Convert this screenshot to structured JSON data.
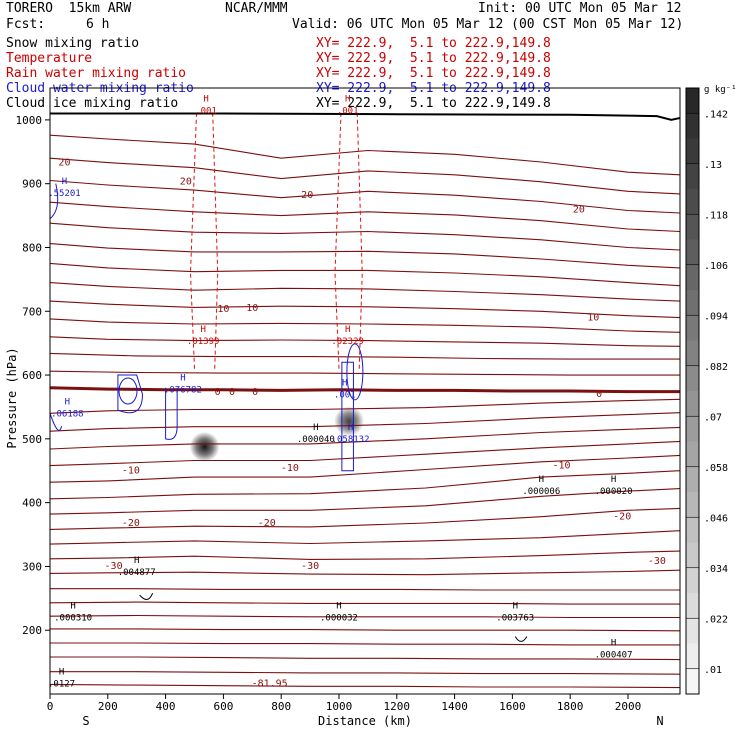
{
  "header": {
    "model": "TORERO  15km ARW",
    "center": "NCAR/MMM",
    "init": "Init: 00 UTC Mon 05 Mar 12",
    "fcst_label": "Fcst:",
    "fcst_value": "6 h",
    "valid": "Valid: 06 UTC Mon 05 Mar 12 (00 CST Mon 05 Mar 12)"
  },
  "legend": [
    {
      "label": "Snow mixing ratio",
      "xy": "XY= 222.9,  5.1 to 222.9,149.8",
      "color": "#000000"
    },
    {
      "label": "Temperature",
      "xy": "XY= 222.9,  5.1 to 222.9,149.8",
      "color": "#cc0000"
    },
    {
      "label": "Rain water mixing ratio",
      "xy": "XY= 222.9,  5.1 to 222.9,149.8",
      "color": "#cc0000"
    },
    {
      "label": "Cloud water mixing ratio",
      "xy": "XY= 222.9,  5.1 to 222.9,149.8",
      "color": "#1a1acc"
    },
    {
      "label": "Cloud ice mixing ratio",
      "xy": "XY= 222.9,  5.1 to 222.9,149.8",
      "color": "#000000"
    }
  ],
  "chart_data": {
    "type": "cross-section contour",
    "xlabel": "Distance (km)",
    "ylabel": "Pressure (hPa)",
    "xlim": [
      0,
      2180
    ],
    "ylim": [
      1050,
      100
    ],
    "x_ticks": [
      "0",
      "200",
      "400",
      "600",
      "800",
      "1000",
      "1200",
      "1400",
      "1600",
      "1800",
      "2000"
    ],
    "x_tick_values": [
      0,
      200,
      400,
      600,
      800,
      1000,
      1200,
      1400,
      1600,
      1800,
      2000
    ],
    "y_ticks": [
      "200",
      "300",
      "400",
      "500",
      "600",
      "700",
      "800",
      "900",
      "1000"
    ],
    "y_tick_values": [
      200,
      300,
      400,
      500,
      600,
      700,
      800,
      900,
      1000
    ],
    "left_end": "S",
    "right_end": "N",
    "colorbar": {
      "unit": "g kg⁻¹",
      "labels": [
        ".142",
        ".13",
        ".118",
        ".106",
        ".094",
        ".082",
        ".07",
        ".058",
        ".046",
        ".034",
        ".022",
        ".01"
      ],
      "values": [
        0.142,
        0.13,
        0.118,
        0.106,
        0.094,
        0.082,
        0.07,
        0.058,
        0.046,
        0.034,
        0.022,
        0.01
      ],
      "min": 0.004,
      "max": 0.148
    },
    "temperature_contours": [
      {
        "x": [
          0,
          300,
          600,
          900,
          1200,
          1500,
          1800,
          2180
        ],
        "p": [
          115,
          114,
          113,
          112,
          112,
          111,
          111,
          110
        ]
      },
      {
        "x": [
          0,
          300,
          600,
          900,
          1200,
          1500,
          1800,
          2180
        ],
        "p": [
          135,
          135,
          134,
          133,
          133,
          132,
          132,
          131
        ]
      },
      {
        "x": [
          0,
          300,
          600,
          900,
          1200,
          1500,
          1800,
          2180
        ],
        "p": [
          158,
          158,
          157,
          156,
          156,
          155,
          155,
          154
        ]
      },
      {
        "x": [
          0,
          300,
          600,
          900,
          1200,
          1500,
          1800,
          2180
        ],
        "p": [
          180,
          180,
          179,
          179,
          178,
          178,
          177,
          177
        ]
      },
      {
        "x": [
          0,
          300,
          600,
          900,
          1200,
          1500,
          1800,
          2180
        ],
        "p": [
          202,
          202,
          201,
          201,
          200,
          200,
          200,
          199
        ]
      },
      {
        "x": [
          0,
          300,
          600,
          900,
          1200,
          1500,
          1800,
          2180
        ],
        "p": [
          222,
          223,
          222,
          221,
          221,
          221,
          220,
          220
        ]
      },
      {
        "x": [
          0,
          300,
          600,
          900,
          1200,
          1500,
          1800,
          2180
        ],
        "p": [
          243,
          244,
          243,
          242,
          242,
          242,
          241,
          241
        ]
      },
      {
        "x": [
          0,
          300,
          600,
          900,
          1200,
          1500,
          1800,
          2180
        ],
        "p": [
          265,
          265,
          264,
          264,
          264,
          263,
          263,
          263
        ]
      },
      {
        "x": [
          0,
          200,
          500,
          900,
          1300,
          1700,
          2000,
          2180
        ],
        "p": [
          289,
          290,
          291,
          288,
          287,
          290,
          292,
          294
        ]
      },
      {
        "x": [
          0,
          200,
          500,
          900,
          1300,
          1700,
          2000,
          2180
        ],
        "p": [
          312,
          313,
          316,
          311,
          312,
          317,
          322,
          324
        ]
      },
      {
        "x": [
          0,
          200,
          500,
          900,
          1300,
          1700,
          2000,
          2180
        ],
        "p": [
          335,
          337,
          340,
          336,
          340,
          345,
          352,
          356
        ]
      },
      {
        "x": [
          0,
          200,
          500,
          900,
          1300,
          1700,
          2000,
          2180
        ],
        "p": [
          358,
          360,
          363,
          362,
          368,
          378,
          388,
          391
        ]
      },
      {
        "x": [
          0,
          200,
          500,
          900,
          1300,
          1700,
          2000,
          2180
        ],
        "p": [
          382,
          384,
          388,
          388,
          395,
          410,
          418,
          422
        ]
      },
      {
        "x": [
          0,
          200,
          500,
          900,
          1300,
          1700,
          2000,
          2180
        ],
        "p": [
          406,
          408,
          413,
          414,
          423,
          440,
          446,
          450
        ]
      },
      {
        "x": [
          0,
          200,
          500,
          900,
          1300,
          1700,
          2000,
          2180
        ],
        "p": [
          432,
          434,
          440,
          440,
          452,
          464,
          470,
          474
        ]
      },
      {
        "x": [
          0,
          200,
          500,
          900,
          1300,
          1700,
          2000,
          2180
        ],
        "p": [
          458,
          461,
          466,
          466,
          476,
          486,
          492,
          496
        ]
      },
      {
        "x": [
          0,
          200,
          500,
          900,
          1300,
          1700,
          2000,
          2180
        ],
        "p": [
          484,
          488,
          492,
          492,
          500,
          510,
          515,
          518
        ]
      },
      {
        "x": [
          0,
          200,
          500,
          900,
          1300,
          1700,
          2000,
          2180
        ],
        "p": [
          512,
          516,
          519,
          519,
          524,
          533,
          538,
          541
        ]
      },
      {
        "x": [
          0,
          200,
          500,
          900,
          1300,
          1700,
          2000,
          2180
        ],
        "p": [
          540,
          544,
          546,
          546,
          549,
          556,
          560,
          562
        ]
      },
      {
        "x": [
          0,
          300,
          600,
          900,
          1200,
          1500,
          1800,
          2180
        ],
        "p": [
          580,
          578,
          577,
          577,
          576,
          575,
          574,
          574
        ]
      },
      {
        "x": [
          0,
          300,
          600,
          900,
          1200,
          1500,
          1800,
          2180
        ],
        "p": [
          606,
          604,
          603,
          603,
          602,
          601,
          600,
          600
        ]
      },
      {
        "x": [
          0,
          300,
          600,
          900,
          1200,
          1500,
          1800,
          2180
        ],
        "p": [
          634,
          630,
          629,
          629,
          628,
          626,
          625,
          625
        ]
      },
      {
        "x": [
          0,
          200,
          500,
          800,
          1100,
          1400,
          1700,
          2000,
          2180
        ],
        "p": [
          660,
          656,
          654,
          655,
          654,
          652,
          650,
          646,
          645
        ]
      },
      {
        "x": [
          0,
          200,
          500,
          800,
          1100,
          1400,
          1700,
          2000,
          2180
        ],
        "p": [
          688,
          683,
          680,
          681,
          680,
          678,
          675,
          669,
          667
        ]
      },
      {
        "x": [
          0,
          200,
          500,
          800,
          1100,
          1400,
          1700,
          2000,
          2180
        ],
        "p": [
          716,
          711,
          706,
          708,
          707,
          704,
          700,
          693,
          690
        ]
      },
      {
        "x": [
          0,
          200,
          500,
          800,
          1100,
          1400,
          1700,
          2000,
          2180
        ],
        "p": [
          745,
          739,
          733,
          736,
          735,
          731,
          726,
          719,
          716
        ]
      },
      {
        "x": [
          0,
          200,
          500,
          800,
          1100,
          1400,
          1700,
          2000,
          2180
        ],
        "p": [
          775,
          768,
          762,
          764,
          764,
          760,
          754,
          745,
          740
        ]
      },
      {
        "x": [
          0,
          200,
          500,
          800,
          1100,
          1400,
          1700,
          2000,
          2180
        ],
        "p": [
          806,
          799,
          793,
          793,
          794,
          790,
          782,
          772,
          768
        ]
      },
      {
        "x": [
          0,
          200,
          500,
          800,
          1100,
          1400,
          1700,
          2000,
          2180
        ],
        "p": [
          838,
          831,
          824,
          822,
          825,
          820,
          812,
          800,
          796
        ]
      },
      {
        "x": [
          0,
          200,
          500,
          800,
          1100,
          1400,
          1700,
          2000,
          2180
        ],
        "p": [
          871,
          864,
          856,
          850,
          856,
          851,
          842,
          829,
          825
        ]
      },
      {
        "x": [
          0,
          200,
          500,
          800,
          1100,
          1400,
          1700,
          2000,
          2180
        ],
        "p": [
          905,
          898,
          890,
          878,
          888,
          882,
          872,
          858,
          854
        ]
      },
      {
        "x": [
          0,
          200,
          500,
          800,
          1100,
          1400,
          1700,
          2000,
          2180
        ],
        "p": [
          940,
          933,
          925,
          908,
          920,
          914,
          903,
          888,
          884
        ]
      },
      {
        "x": [
          0,
          200,
          500,
          800,
          1100,
          1400,
          1700,
          2000,
          2180
        ],
        "p": [
          976,
          970,
          962,
          940,
          952,
          946,
          934,
          918,
          914
        ]
      }
    ],
    "zero_isotherm": {
      "x": [
        0,
        200,
        400,
        600,
        800,
        1000,
        1200,
        1400,
        1600,
        1800,
        2000,
        2180
      ],
      "p": [
        580,
        578,
        577,
        577,
        576,
        577,
        576,
        576,
        575,
        575,
        574,
        574
      ],
      "label": "0"
    },
    "ground": {
      "x": [
        0,
        600,
        1200,
        1800,
        2100,
        2150,
        2180
      ],
      "p": [
        1010,
        1010,
        1009,
        1008,
        1006,
        1000,
        1003
      ]
    },
    "temperature_labels": [
      {
        "text": "-81.95",
        "x": 760,
        "p": 118
      },
      {
        "text": "-30",
        "x": 220,
        "p": 302
      },
      {
        "text": "-30",
        "x": 900,
        "p": 302
      },
      {
        "text": "-30",
        "x": 2100,
        "p": 310
      },
      {
        "text": "-20",
        "x": 280,
        "p": 370
      },
      {
        "text": "-20",
        "x": 750,
        "p": 370
      },
      {
        "text": "-20",
        "x": 1980,
        "p": 380
      },
      {
        "text": "-10",
        "x": 280,
        "p": 452
      },
      {
        "text": "-10",
        "x": 830,
        "p": 456
      },
      {
        "text": "-10",
        "x": 1770,
        "p": 460
      },
      {
        "text": "0",
        "x": 630,
        "p": 575
      },
      {
        "text": "0",
        "x": 710,
        "p": 575
      },
      {
        "text": "0",
        "x": 1900,
        "p": 572
      },
      {
        "text": "10",
        "x": 600,
        "p": 705
      },
      {
        "text": "10",
        "x": 700,
        "p": 707
      },
      {
        "text": "10",
        "x": 1880,
        "p": 692
      },
      {
        "text": "20",
        "x": 50,
        "p": 935
      },
      {
        "text": "20",
        "x": 470,
        "p": 905
      },
      {
        "text": "20",
        "x": 890,
        "p": 884
      },
      {
        "text": "20",
        "x": 1830,
        "p": 861
      },
      {
        "text": "0",
        "x": 580,
        "p": 575
      }
    ],
    "max_labels": [
      {
        "text": ".000310",
        "x": 80,
        "p": 218,
        "color": "#000000"
      },
      {
        "text": ".004877",
        "x": 300,
        "p": 290,
        "color": "#000000"
      },
      {
        "text": ".000032",
        "x": 1000,
        "p": 218,
        "color": "#000000"
      },
      {
        "text": ".003763",
        "x": 1610,
        "p": 218,
        "color": "#000000"
      },
      {
        "text": ".000407",
        "x": 1950,
        "p": 160,
        "color": "#000000"
      },
      {
        "text": ".000006",
        "x": 1700,
        "p": 417,
        "color": "#000000"
      },
      {
        "text": ".000020",
        "x": 1950,
        "p": 417,
        "color": "#000000"
      },
      {
        "text": ".000040",
        "x": 920,
        "p": 498,
        "color": "#000000"
      },
      {
        "text": ".058132",
        "x": 1040,
        "p": 498,
        "color": "#1a1acc"
      },
      {
        "text": ".06188",
        "x": 60,
        "p": 538,
        "color": "#1a1acc"
      },
      {
        "text": ".076782",
        "x": 460,
        "p": 576,
        "color": "#1a1acc"
      },
      {
        "text": ".001",
        "x": 1020,
        "p": 568,
        "color": "#1a1acc"
      },
      {
        "text": ".01399",
        "x": 530,
        "p": 652,
        "color": "#cc0000"
      },
      {
        "text": ".02329",
        "x": 1030,
        "p": 652,
        "color": "#cc0000"
      },
      {
        "text": ".55201",
        "x": 50,
        "p": 884,
        "color": "#1a1acc"
      },
      {
        "text": ".001",
        "x": 540,
        "p": 1013,
        "color": "#cc0000"
      },
      {
        "text": ".001",
        "x": 1030,
        "p": 1013,
        "color": "#cc0000"
      },
      {
        "text": ".0127",
        "x": 40,
        "p": 115,
        "color": "#000000"
      }
    ],
    "snow_columns": [
      {
        "x_center": 535,
        "p_top": 380,
        "p_bottom": 595,
        "peak": 0.142
      },
      {
        "x_center": 1035,
        "p_top": 455,
        "p_bottom": 600,
        "peak": 0.118
      }
    ]
  }
}
